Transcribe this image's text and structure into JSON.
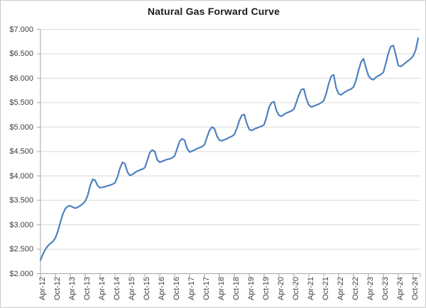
{
  "title": "Natural Gas Forward Curve",
  "colors": {
    "line": "#4F81BD",
    "gridline": "#D9D9D9",
    "axis": "#A6A6A6",
    "tick_text": "#404040",
    "title_text": "#1A1A1A",
    "background": "#FFFFFF",
    "border": "#C9C9C9"
  },
  "y_axis": {
    "tick_labels": [
      "$7.000",
      "$6.500",
      "$6.000",
      "$5.500",
      "$5.000",
      "$4.500",
      "$4.000",
      "$3.500",
      "$3.000",
      "$2.500",
      "$2.000"
    ],
    "tick_values": [
      7.0,
      6.5,
      6.0,
      5.5,
      5.0,
      4.5,
      4.0,
      3.5,
      3.0,
      2.5,
      2.0
    ],
    "min": 2.0,
    "max": 7.0,
    "step": 0.5
  },
  "x_axis": {
    "tick_labels": [
      "Apr-12",
      "Oct-12",
      "Apr-13",
      "Oct-13",
      "Apr-14",
      "Oct-14",
      "Apr-15",
      "Oct-15",
      "Apr-16",
      "Oct-16",
      "Apr-17",
      "Oct-17",
      "Apr-18",
      "Oct-18",
      "Apr-19",
      "Oct-19",
      "Apr-20",
      "Oct-20",
      "Apr-21",
      "Oct-21",
      "Apr-22",
      "Oct-22",
      "Apr-23",
      "Oct-23",
      "Apr-24",
      "Oct-24"
    ],
    "tick_interval_months": 6
  },
  "chart_data": {
    "type": "line",
    "title": "Natural Gas Forward Curve",
    "xlabel": "",
    "ylabel": "",
    "ylim": [
      2.0,
      7.0
    ],
    "grid": "horizontal",
    "legend": "none",
    "series_name": "Natural Gas Forward Price ($/MMBtu)",
    "x": [
      "Apr-12",
      "May-12",
      "Jun-12",
      "Jul-12",
      "Aug-12",
      "Sep-12",
      "Oct-12",
      "Nov-12",
      "Dec-12",
      "Jan-13",
      "Feb-13",
      "Mar-13",
      "Apr-13",
      "May-13",
      "Jun-13",
      "Jul-13",
      "Aug-13",
      "Sep-13",
      "Oct-13",
      "Nov-13",
      "Dec-13",
      "Jan-14",
      "Feb-14",
      "Mar-14",
      "Apr-14",
      "May-14",
      "Jun-14",
      "Jul-14",
      "Aug-14",
      "Sep-14",
      "Oct-14",
      "Nov-14",
      "Dec-14",
      "Jan-15",
      "Feb-15",
      "Mar-15",
      "Apr-15",
      "May-15",
      "Jun-15",
      "Jul-15",
      "Aug-15",
      "Sep-15",
      "Oct-15",
      "Nov-15",
      "Dec-15",
      "Jan-16",
      "Feb-16",
      "Mar-16",
      "Apr-16",
      "May-16",
      "Jun-16",
      "Jul-16",
      "Aug-16",
      "Sep-16",
      "Oct-16",
      "Nov-16",
      "Dec-16",
      "Jan-17",
      "Feb-17",
      "Mar-17",
      "Apr-17",
      "May-17",
      "Jun-17",
      "Jul-17",
      "Aug-17",
      "Sep-17",
      "Oct-17",
      "Nov-17",
      "Dec-17",
      "Jan-18",
      "Feb-18",
      "Mar-18",
      "Apr-18",
      "May-18",
      "Jun-18",
      "Jul-18",
      "Aug-18",
      "Sep-18",
      "Oct-18",
      "Nov-18",
      "Dec-18",
      "Jan-19",
      "Feb-19",
      "Mar-19",
      "Apr-19",
      "May-19",
      "Jun-19",
      "Jul-19",
      "Aug-19",
      "Sep-19",
      "Oct-19",
      "Nov-19",
      "Dec-19",
      "Jan-20",
      "Feb-20",
      "Mar-20",
      "Apr-20",
      "May-20",
      "Jun-20",
      "Jul-20",
      "Aug-20",
      "Sep-20",
      "Oct-20",
      "Nov-20",
      "Dec-20",
      "Jan-21",
      "Feb-21",
      "Mar-21",
      "Apr-21",
      "May-21",
      "Jun-21",
      "Jul-21",
      "Aug-21",
      "Sep-21",
      "Oct-21",
      "Nov-21",
      "Dec-21",
      "Jan-22",
      "Feb-22",
      "Mar-22",
      "Apr-22",
      "May-22",
      "Jun-22",
      "Jul-22",
      "Aug-22",
      "Sep-22",
      "Oct-22",
      "Nov-22",
      "Dec-22",
      "Jan-23",
      "Feb-23",
      "Mar-23",
      "Apr-23",
      "May-23",
      "Jun-23",
      "Jul-23",
      "Aug-23",
      "Sep-23",
      "Oct-23",
      "Nov-23",
      "Dec-23",
      "Jan-24",
      "Feb-24",
      "Mar-24",
      "Apr-24",
      "May-24",
      "Jun-24",
      "Jul-24",
      "Aug-24",
      "Sep-24",
      "Oct-24",
      "Nov-24",
      "Dec-24"
    ],
    "values": [
      2.28,
      2.4,
      2.5,
      2.57,
      2.62,
      2.66,
      2.73,
      2.87,
      3.05,
      3.22,
      3.33,
      3.38,
      3.39,
      3.36,
      3.34,
      3.36,
      3.39,
      3.43,
      3.48,
      3.6,
      3.8,
      3.93,
      3.91,
      3.8,
      3.76,
      3.77,
      3.78,
      3.8,
      3.81,
      3.83,
      3.86,
      3.98,
      4.16,
      4.28,
      4.25,
      4.08,
      4.01,
      4.03,
      4.07,
      4.1,
      4.12,
      4.14,
      4.17,
      4.32,
      4.48,
      4.53,
      4.5,
      4.33,
      4.28,
      4.3,
      4.32,
      4.34,
      4.35,
      4.37,
      4.41,
      4.56,
      4.71,
      4.76,
      4.73,
      4.56,
      4.49,
      4.51,
      4.53,
      4.56,
      4.58,
      4.6,
      4.64,
      4.79,
      4.93,
      5.0,
      4.97,
      4.82,
      4.73,
      4.72,
      4.74,
      4.76,
      4.79,
      4.81,
      4.85,
      4.97,
      5.13,
      5.24,
      5.26,
      5.08,
      4.95,
      4.93,
      4.96,
      4.98,
      5.0,
      5.02,
      5.05,
      5.21,
      5.41,
      5.5,
      5.52,
      5.33,
      5.24,
      5.22,
      5.26,
      5.29,
      5.31,
      5.33,
      5.37,
      5.51,
      5.66,
      5.77,
      5.78,
      5.58,
      5.45,
      5.41,
      5.43,
      5.45,
      5.47,
      5.5,
      5.54,
      5.69,
      5.89,
      6.04,
      6.07,
      5.8,
      5.68,
      5.66,
      5.7,
      5.73,
      5.76,
      5.78,
      5.82,
      5.96,
      6.16,
      6.33,
      6.4,
      6.21,
      6.05,
      5.99,
      5.97,
      6.02,
      6.05,
      6.08,
      6.12,
      6.31,
      6.51,
      6.65,
      6.67,
      6.48,
      6.26,
      6.24,
      6.28,
      6.32,
      6.36,
      6.4,
      6.46,
      6.58,
      6.82
    ]
  }
}
